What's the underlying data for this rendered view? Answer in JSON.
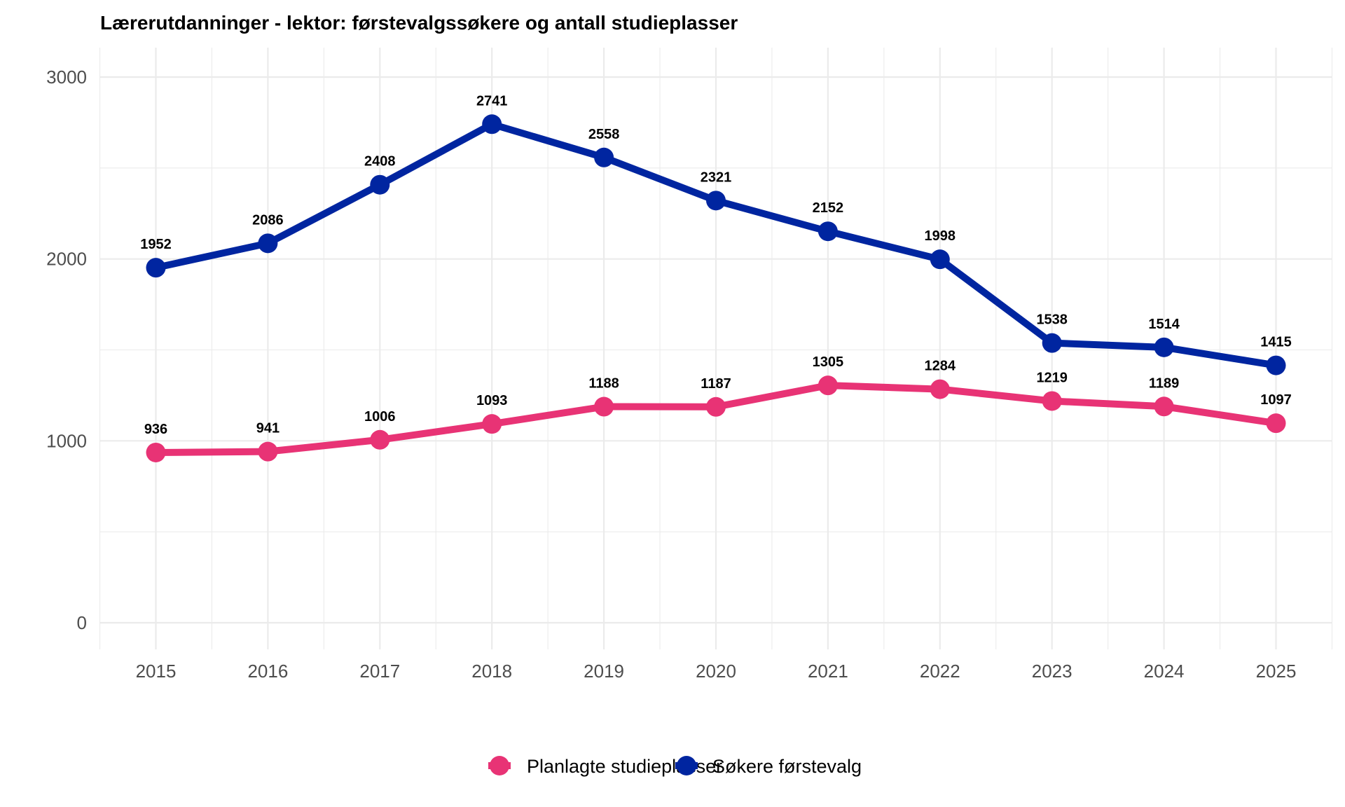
{
  "chart_data": {
    "type": "line",
    "title": "Lærerutdanninger - lektor: førstevalgssøkere og antall studieplasser",
    "xlabel": "",
    "ylabel": "",
    "x": [
      2015,
      2016,
      2017,
      2018,
      2019,
      2020,
      2021,
      2022,
      2023,
      2024,
      2025
    ],
    "x_tick_labels": [
      "2015",
      "2016",
      "2017",
      "2018",
      "2019",
      "2020",
      "2021",
      "2022",
      "2023",
      "2024",
      "2025"
    ],
    "y_ticks": [
      0,
      1000,
      2000,
      3000
    ],
    "y_tick_labels": [
      "0",
      "1000",
      "2000",
      "3000"
    ],
    "ylim": [
      -150,
      3150
    ],
    "xlim": [
      2014.5,
      2025.5
    ],
    "grid": true,
    "legend_position": "bottom",
    "series": [
      {
        "name": "Planlagte studieplasser",
        "color": "#E83375",
        "values": [
          936,
          941,
          1006,
          1093,
          1188,
          1187,
          1305,
          1284,
          1219,
          1189,
          1097
        ],
        "labels": [
          "936",
          "941",
          "1006",
          "1093",
          "1188",
          "1187",
          "1305",
          "1284",
          "1219",
          "1189",
          "1097"
        ]
      },
      {
        "name": "Søkere førstevalg",
        "color": "#0025A0",
        "values": [
          1952,
          2086,
          2408,
          2741,
          2558,
          2321,
          2152,
          1998,
          1538,
          1514,
          1415
        ],
        "labels": [
          "1952",
          "2086",
          "2408",
          "2741",
          "2558",
          "2321",
          "2152",
          "1998",
          "1538",
          "1514",
          "1415"
        ]
      }
    ]
  }
}
